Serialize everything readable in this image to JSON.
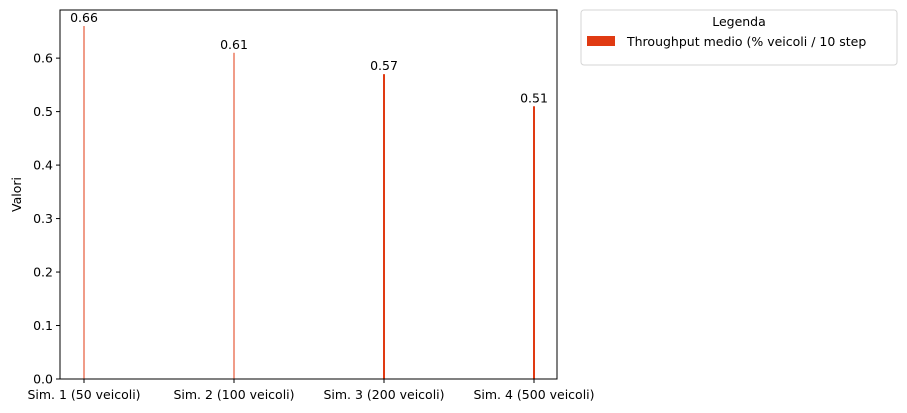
{
  "chart_data": {
    "type": "bar",
    "categories": [
      "Sim. 1 (50 veicoli)",
      "Sim. 2 (100 veicoli)",
      "Sim. 3 (200 veicoli)",
      "Sim. 4 (500 veicoli)"
    ],
    "series": [
      {
        "name": "Throughput medio (% veicoli / 10 step",
        "values": [
          0.66,
          0.61,
          0.57,
          0.51
        ],
        "data_labels": [
          "0.66",
          "0.61",
          "0.57",
          "0.51"
        ],
        "color": "#e03a12"
      }
    ],
    "bar_widths": [
      1,
      1,
      2,
      2
    ],
    "ylabel": "Valori",
    "xlabel": "",
    "ylim": [
      0,
      0.69
    ],
    "yticks": [
      0.0,
      0.1,
      0.2,
      0.3,
      0.4,
      0.5,
      0.6
    ],
    "ytick_labels": [
      "0.0",
      "0.1",
      "0.2",
      "0.3",
      "0.4",
      "0.5",
      "0.6"
    ],
    "grid": false,
    "legend": {
      "title": "Legenda",
      "placement": "outside-top-right"
    }
  }
}
